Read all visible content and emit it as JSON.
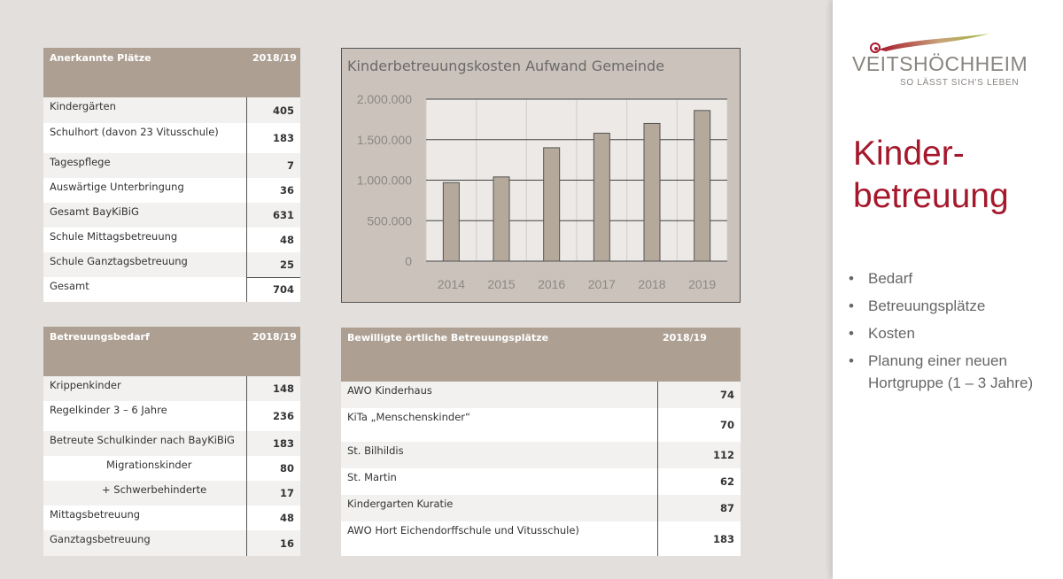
{
  "table_places": {
    "header": "Anerkannte Plätze",
    "year": "2018/19",
    "rows": [
      {
        "label": "Kindergärten",
        "value": "405"
      },
      {
        "label": "Schulhort (davon 23 Vitusschule)",
        "value": "183"
      },
      {
        "label": "Tagespflege",
        "value": "7"
      },
      {
        "label": "Auswärtige Unterbringung",
        "value": "36"
      },
      {
        "label": "Gesamt BayKiBiG",
        "value": "631"
      },
      {
        "label": "Schule Mittagsbetreuung",
        "value": "48"
      },
      {
        "label": "Schule Ganztagsbetreuung",
        "value": "25"
      },
      {
        "label": "Gesamt",
        "value": "704"
      }
    ]
  },
  "table_demand": {
    "header": "Betreuungsbedarf",
    "year": "2018/19",
    "rows": [
      {
        "label": "Krippenkinder",
        "value": "148"
      },
      {
        "label": "Regelkinder 3 – 6  Jahre",
        "value": "236"
      },
      {
        "label": "Betreute Schulkinder nach BayKiBiG",
        "value": "183"
      },
      {
        "label": "Migrationskinder",
        "value": "80"
      },
      {
        "label": "+ Schwerbehinderte",
        "value": "17"
      },
      {
        "label": "Mittagsbetreuung",
        "value": "48"
      },
      {
        "label": "Ganztagsbetreuung",
        "value": "16"
      }
    ]
  },
  "table_approved": {
    "header": "Bewilligte örtliche Betreuungsplätze",
    "year": "2018/19",
    "rows": [
      {
        "label": "AWO Kinderhaus",
        "value": "74"
      },
      {
        "label": "KiTa „Menschenskinder“",
        "value": "70"
      },
      {
        "label": "St. Bilhildis",
        "value": "112"
      },
      {
        "label": "St. Martin",
        "value": "62"
      },
      {
        "label": "Kindergarten Kuratie",
        "value": "87"
      },
      {
        "label": "AWO Hort Eichendorffschule und Vitusschule)",
        "value": "183"
      }
    ]
  },
  "chart_data": {
    "type": "bar",
    "title": "Kinderbetreuungskosten Aufwand Gemeinde",
    "categories": [
      "2014",
      "2015",
      "2016",
      "2017",
      "2018",
      "2019"
    ],
    "values": [
      970000,
      1040000,
      1400000,
      1580000,
      1700000,
      1860000
    ],
    "ylim": [
      0,
      2000000
    ],
    "yticks": [
      0,
      500000,
      1000000,
      1500000,
      2000000
    ],
    "ytick_labels": [
      "0",
      "500.000",
      "1.000.000",
      "1.500.000",
      "2.000.000"
    ],
    "grid": true,
    "bar_color": "#b5a99b",
    "plot_bg": "#ece9e6"
  },
  "sidebar": {
    "logo_name": "VEITSHÖCHHEIM",
    "logo_tagline": "SO LÄSST SICH'S LEBEN",
    "heading_line1": "Kinder-",
    "heading_line2": "betreuung",
    "bullet_symbol": "•",
    "bullets": [
      "Bedarf",
      "Betreuungsplätze",
      "Kosten",
      "Planung einer neuen Hortgruppe (1 – 3 Jahre)"
    ]
  }
}
